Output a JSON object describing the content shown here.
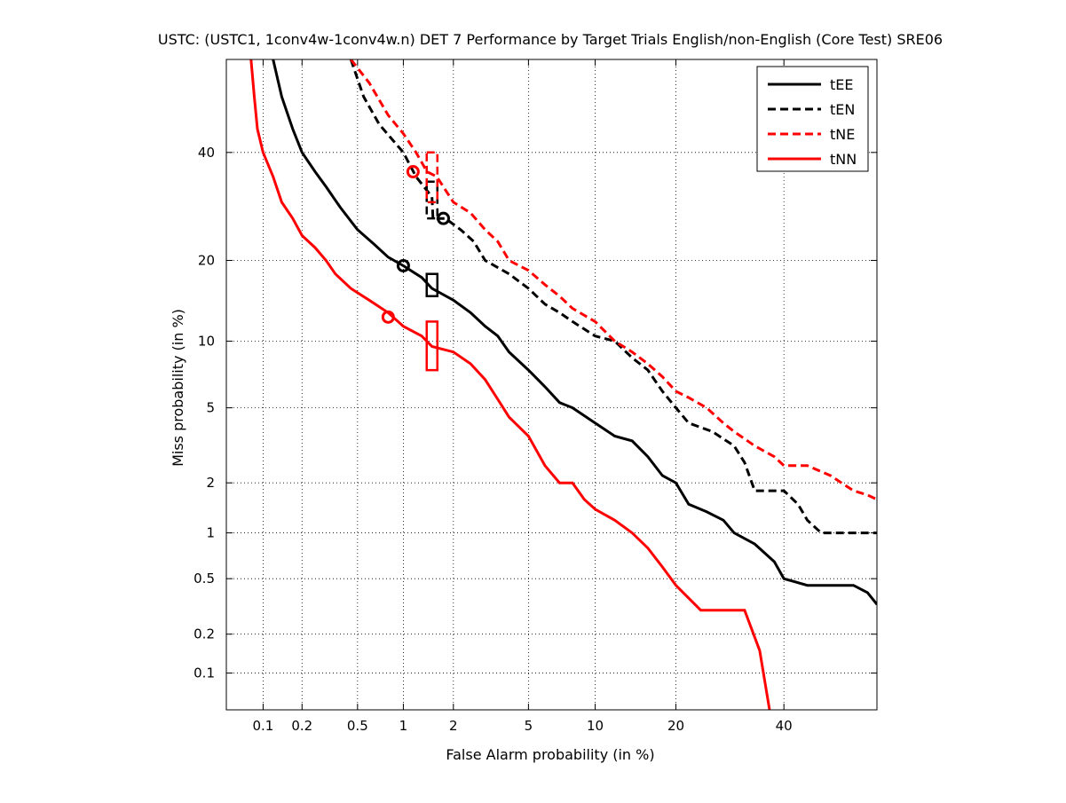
{
  "chart_data": {
    "type": "line",
    "title": "USTC: (USTC1, 1conv4w-1conv4w.n) DET 7 Performance by Target Trials English/non-English (Core Test) SRE06",
    "xlabel": "False Alarm probability (in %)",
    "ylabel": "Miss probability (in %)",
    "scale": "normal-deviate (probit)",
    "xlim": [
      0.05,
      60
    ],
    "ylim": [
      0.05,
      60
    ],
    "xticks": [
      0.1,
      0.2,
      0.5,
      1,
      2,
      5,
      10,
      20,
      40
    ],
    "xtick_labels": [
      "0.1",
      "0.2",
      "0.5",
      "1",
      "2",
      "5",
      "10",
      "20",
      "40"
    ],
    "yticks": [
      0.1,
      0.2,
      0.5,
      1,
      2,
      5,
      10,
      20,
      40
    ],
    "ytick_labels": [
      "0.1",
      "0.2",
      "0.5",
      "1",
      "2",
      "5",
      "10",
      "20",
      "40"
    ],
    "grid": true,
    "legend_position": "top-right",
    "series": [
      {
        "name": "tEE",
        "color": "#000000",
        "dash": "solid",
        "points": [
          [
            0.12,
            60
          ],
          [
            0.14,
            52
          ],
          [
            0.17,
            45
          ],
          [
            0.2,
            40
          ],
          [
            0.25,
            36
          ],
          [
            0.3,
            33
          ],
          [
            0.38,
            29
          ],
          [
            0.5,
            25
          ],
          [
            0.65,
            22.5
          ],
          [
            0.8,
            20.5
          ],
          [
            1.0,
            19.2
          ],
          [
            1.3,
            17.5
          ],
          [
            1.5,
            16
          ],
          [
            2.0,
            14.5
          ],
          [
            2.5,
            13
          ],
          [
            3.0,
            11.5
          ],
          [
            3.5,
            10.5
          ],
          [
            4.0,
            9
          ],
          [
            5.0,
            7.5
          ],
          [
            6.0,
            6.3
          ],
          [
            7.0,
            5.3
          ],
          [
            8.0,
            5.0
          ],
          [
            10,
            4.2
          ],
          [
            12,
            3.6
          ],
          [
            14,
            3.4
          ],
          [
            16,
            2.8
          ],
          [
            18,
            2.2
          ],
          [
            20,
            2.0
          ],
          [
            22,
            1.5
          ],
          [
            25,
            1.35
          ],
          [
            28,
            1.2
          ],
          [
            30,
            1.0
          ],
          [
            34,
            0.85
          ],
          [
            38,
            0.65
          ],
          [
            40,
            0.5
          ],
          [
            45,
            0.45
          ],
          [
            50,
            0.45
          ],
          [
            55,
            0.45
          ],
          [
            58,
            0.4
          ],
          [
            60,
            0.33
          ]
        ]
      },
      {
        "name": "tEN",
        "color": "#000000",
        "dash": "dashed",
        "points": [
          [
            0.45,
            60
          ],
          [
            0.55,
            52
          ],
          [
            0.7,
            46
          ],
          [
            1.0,
            40
          ],
          [
            1.2,
            35
          ],
          [
            1.5,
            31
          ],
          [
            1.52,
            27
          ],
          [
            1.8,
            27
          ],
          [
            2.2,
            25
          ],
          [
            2.6,
            23
          ],
          [
            3.0,
            20
          ],
          [
            4.0,
            18
          ],
          [
            5.0,
            16
          ],
          [
            6.0,
            14
          ],
          [
            7.0,
            13
          ],
          [
            8.0,
            12
          ],
          [
            10,
            10.5
          ],
          [
            12,
            10
          ],
          [
            14,
            8.5
          ],
          [
            16,
            7.5
          ],
          [
            18,
            6
          ],
          [
            20,
            5
          ],
          [
            22,
            4.2
          ],
          [
            26,
            3.8
          ],
          [
            30,
            3.2
          ],
          [
            32,
            2.6
          ],
          [
            34,
            1.8
          ],
          [
            40,
            1.8
          ],
          [
            43,
            1.5
          ],
          [
            45,
            1.2
          ],
          [
            48,
            1.0
          ],
          [
            52,
            1.0
          ],
          [
            60,
            1.0
          ]
        ]
      },
      {
        "name": "tNE",
        "color": "#ff0000",
        "dash": "dashed",
        "points": [
          [
            0.45,
            60
          ],
          [
            0.6,
            55
          ],
          [
            0.8,
            48
          ],
          [
            1.0,
            44
          ],
          [
            1.2,
            40
          ],
          [
            1.4,
            36
          ],
          [
            1.6,
            35
          ],
          [
            2.0,
            30
          ],
          [
            2.5,
            28
          ],
          [
            3.0,
            25
          ],
          [
            3.5,
            23
          ],
          [
            4.0,
            20
          ],
          [
            5.0,
            18.5
          ],
          [
            6.0,
            16.5
          ],
          [
            7.0,
            15
          ],
          [
            8.0,
            13.5
          ],
          [
            10,
            12
          ],
          [
            12,
            10
          ],
          [
            14,
            9
          ],
          [
            16,
            8
          ],
          [
            18,
            7
          ],
          [
            20,
            6
          ],
          [
            22,
            5.6
          ],
          [
            25,
            5
          ],
          [
            28,
            4.2
          ],
          [
            30,
            3.8
          ],
          [
            34,
            3.2
          ],
          [
            38,
            2.8
          ],
          [
            40,
            2.5
          ],
          [
            45,
            2.5
          ],
          [
            50,
            2.2
          ],
          [
            55,
            1.8
          ],
          [
            58,
            1.7
          ],
          [
            60,
            1.6
          ]
        ]
      },
      {
        "name": "tNN",
        "color": "#ff0000",
        "dash": "solid",
        "points": [
          [
            0.08,
            60
          ],
          [
            0.085,
            52
          ],
          [
            0.09,
            45
          ],
          [
            0.1,
            40
          ],
          [
            0.12,
            35
          ],
          [
            0.14,
            30
          ],
          [
            0.17,
            27
          ],
          [
            0.2,
            24
          ],
          [
            0.25,
            22
          ],
          [
            0.3,
            20
          ],
          [
            0.35,
            18
          ],
          [
            0.45,
            16
          ],
          [
            0.6,
            14.5
          ],
          [
            0.8,
            13
          ],
          [
            1.0,
            11.5
          ],
          [
            1.3,
            10.5
          ],
          [
            1.5,
            9.5
          ],
          [
            2.0,
            9
          ],
          [
            2.5,
            8
          ],
          [
            3.0,
            6.8
          ],
          [
            3.5,
            5.5
          ],
          [
            4.0,
            4.5
          ],
          [
            5.0,
            3.6
          ],
          [
            6.0,
            2.5
          ],
          [
            7.0,
            2.0
          ],
          [
            8.0,
            2.0
          ],
          [
            9.0,
            1.6
          ],
          [
            10,
            1.4
          ],
          [
            12,
            1.2
          ],
          [
            14,
            1.0
          ],
          [
            16,
            0.8
          ],
          [
            18,
            0.6
          ],
          [
            20,
            0.45
          ],
          [
            24,
            0.3
          ],
          [
            32,
            0.3
          ],
          [
            35,
            0.15
          ],
          [
            37,
            0.03
          ]
        ]
      }
    ],
    "markers": [
      {
        "series": "tEE",
        "kind": "circle",
        "x": 1.0,
        "y": 19.2
      },
      {
        "series": "tEE",
        "kind": "box",
        "x": 1.5,
        "y_low": 15,
        "y_high": 18
      },
      {
        "series": "tEN",
        "kind": "circle",
        "x": 1.75,
        "y": 27
      },
      {
        "series": "tEN",
        "kind": "box",
        "x": 1.5,
        "y_low": 27,
        "y_high": 34
      },
      {
        "series": "tNE",
        "kind": "circle",
        "x": 1.15,
        "y": 36
      },
      {
        "series": "tNE",
        "kind": "box",
        "x": 1.5,
        "y_low": 30,
        "y_high": 40
      },
      {
        "series": "tNN",
        "kind": "circle",
        "x": 0.8,
        "y": 12.5
      },
      {
        "series": "tNN",
        "kind": "box",
        "x": 1.5,
        "y_low": 7.5,
        "y_high": 12
      }
    ]
  }
}
